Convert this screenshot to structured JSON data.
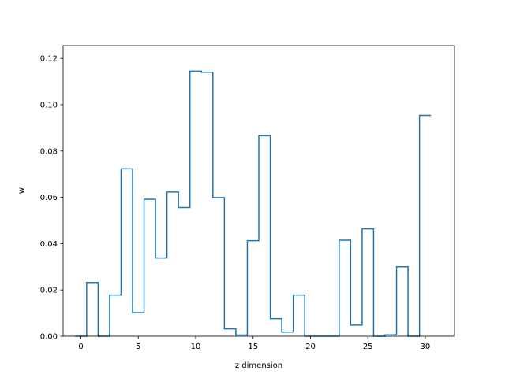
{
  "chart_data": {
    "type": "step",
    "title": "",
    "xlabel": "z dimension",
    "ylabel": "w",
    "xlim": [
      -1.55,
      32.55
    ],
    "ylim": [
      0,
      0.1255
    ],
    "x_ticks": [
      0,
      5,
      10,
      15,
      20,
      25,
      30
    ],
    "y_ticks": [
      0.0,
      0.02,
      0.04,
      0.06,
      0.08,
      0.1,
      0.12
    ],
    "x_tick_labels": [
      "0",
      "5",
      "10",
      "15",
      "20",
      "25",
      "30"
    ],
    "y_tick_labels": [
      "0.00",
      "0.02",
      "0.04",
      "0.06",
      "0.08",
      "0.10",
      "0.12"
    ],
    "grid": false,
    "line_color": "#1f77b4",
    "x": [
      0,
      1,
      2,
      3,
      4,
      5,
      6,
      7,
      8,
      9,
      10,
      11,
      12,
      13,
      14,
      15,
      16,
      17,
      18,
      19,
      20,
      21,
      22,
      23,
      24,
      25,
      26,
      27,
      28,
      29,
      30
    ],
    "values": [
      0.0,
      0.0232,
      0.0,
      0.0178,
      0.0723,
      0.0102,
      0.0592,
      0.0338,
      0.0623,
      0.0556,
      0.1145,
      0.114,
      0.0599,
      0.0032,
      0.0005,
      0.0413,
      0.0866,
      0.0076,
      0.0018,
      0.0178,
      0.0,
      0.0,
      0.0,
      0.0415,
      0.0048,
      0.0464,
      0.0,
      0.0006,
      0.03,
      0.0,
      0.0954
    ]
  }
}
